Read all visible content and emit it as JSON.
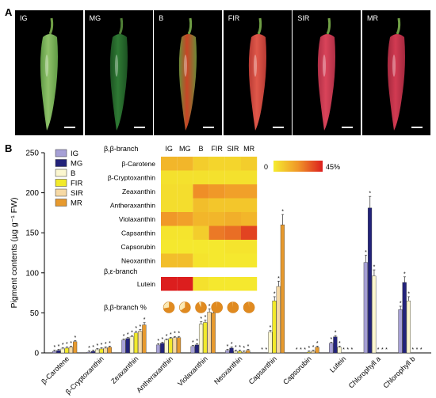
{
  "panels": {
    "a_label": "A",
    "b_label": "B"
  },
  "photos": [
    {
      "label": "IG",
      "body": "#8fc16a",
      "body2": "#5f9a44",
      "stem": "#6f9e45"
    },
    {
      "label": "MG",
      "body": "#2f7a34",
      "body2": "#1c5222",
      "stem": "#4f7f36"
    },
    {
      "label": "B",
      "body": "#c94526",
      "body2": "#6b8a38",
      "stem": "#6f9e45"
    },
    {
      "label": "FIR",
      "body": "#e0584a",
      "body2": "#b73a33",
      "stem": "#6f9e45"
    },
    {
      "label": "SIR",
      "body": "#d9445a",
      "body2": "#b02f46",
      "stem": "#6f9e45"
    },
    {
      "label": "MR",
      "body": "#d23b52",
      "body2": "#a4283e",
      "stem": "#6f9e45"
    }
  ],
  "chart_data": {
    "type": "bar",
    "ylabel": "Pigment contents (µg g⁻¹ FW)",
    "ylim": [
      0,
      250
    ],
    "yticks": [
      0,
      50,
      100,
      150,
      200,
      250
    ],
    "series": [
      {
        "name": "IG",
        "color": "#a6a0d6"
      },
      {
        "name": "MG",
        "color": "#23237a"
      },
      {
        "name": "B",
        "color": "#fbf6cf"
      },
      {
        "name": "FIR",
        "color": "#f2ea2a"
      },
      {
        "name": "SIR",
        "color": "#f6d9a4"
      },
      {
        "name": "MR",
        "color": "#e79a2e"
      }
    ],
    "categories": [
      {
        "name": "β-Carotene",
        "values": [
          2,
          3,
          5,
          6,
          7,
          14
        ]
      },
      {
        "name": "β-Cryptoxanthin",
        "values": [
          1,
          2,
          4,
          5,
          6,
          7
        ]
      },
      {
        "name": "Zeaxanthin",
        "values": [
          16,
          18,
          20,
          25,
          27,
          35
        ]
      },
      {
        "name": "Antheraxanthin",
        "values": [
          10,
          12,
          16,
          18,
          19,
          19
        ]
      },
      {
        "name": "Violaxanthin",
        "values": [
          8,
          10,
          36,
          38,
          51,
          50
        ]
      },
      {
        "name": "Neoxanthin",
        "values": [
          3,
          6,
          2,
          2,
          1,
          3
        ]
      },
      {
        "name": "Capsanthin",
        "values": [
          0,
          0,
          26,
          65,
          83,
          160
        ]
      },
      {
        "name": "Capsorubin",
        "values": [
          0,
          0,
          0,
          1,
          2,
          7
        ]
      },
      {
        "name": "Lutein",
        "values": [
          12,
          20,
          7,
          0,
          0,
          0
        ]
      },
      {
        "name": "Chlorophyll a",
        "values": [
          113,
          181,
          96,
          0,
          0,
          0
        ]
      },
      {
        "name": "Chlorophyll b",
        "values": [
          54,
          88,
          65,
          0,
          0,
          0
        ]
      }
    ],
    "heatmap": {
      "columns": [
        "IG",
        "MG",
        "B",
        "FIR",
        "SIR",
        "MR"
      ],
      "branch1_label": "β,β-branch",
      "branch2_label": "β,ε-branch",
      "rows_bb": [
        {
          "name": "β-Carotene",
          "values": [
            14,
            14,
            8,
            6,
            6,
            8
          ]
        },
        {
          "name": "β-Cryptoxanthin",
          "values": [
            3,
            3,
            3,
            3,
            3,
            3
          ]
        },
        {
          "name": "Zeaxanthin",
          "values": [
            4,
            4,
            24,
            22,
            20,
            20
          ]
        },
        {
          "name": "Antheraxanthin",
          "values": [
            4,
            4,
            12,
            10,
            10,
            10
          ]
        },
        {
          "name": "Violaxanthin",
          "values": [
            22,
            20,
            14,
            14,
            16,
            14
          ]
        },
        {
          "name": "Capsanthin",
          "values": [
            2,
            2,
            8,
            28,
            30,
            38
          ]
        },
        {
          "name": "Capsorubin",
          "values": [
            1,
            1,
            1,
            1,
            2,
            2
          ]
        },
        {
          "name": "Neoxanthin",
          "values": [
            12,
            12,
            2,
            1,
            1,
            1
          ]
        }
      ],
      "rows_be": [
        {
          "name": "Lutein",
          "values": [
            45,
            45,
            3,
            1,
            1,
            1
          ]
        }
      ],
      "scale_min_label": "0",
      "scale_max_label": "45%",
      "pie_row_label": "β,β-branch %",
      "pie_fractions": [
        0.72,
        0.65,
        0.93,
        0.99,
        0.99,
        0.99
      ]
    }
  }
}
